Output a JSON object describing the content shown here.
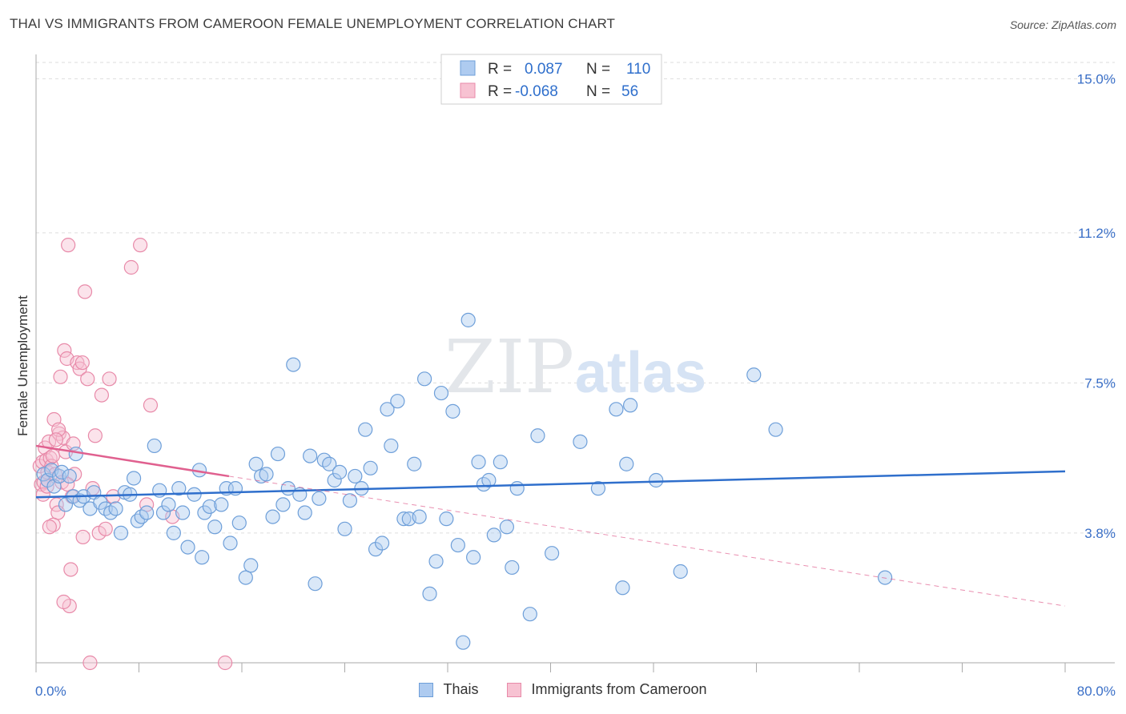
{
  "header": {
    "title": "THAI VS IMMIGRANTS FROM CAMEROON FEMALE UNEMPLOYMENT CORRELATION CHART",
    "source": "Source: ZipAtlas.com"
  },
  "watermark": {
    "zip": "ZIP",
    "atlas": "atlas"
  },
  "legend": {
    "rows": [
      {
        "r_label": "R =",
        "r_value": "0.087",
        "n_label": "N =",
        "n_value": "110"
      },
      {
        "r_label": "R =",
        "r_value": "-0.068",
        "n_label": "N =",
        "n_value": "56"
      }
    ]
  },
  "bottom_legend": {
    "series1": "Thais",
    "series2": "Immigrants from Cameroon"
  },
  "colors": {
    "blue": "#6e9fd9",
    "blue_fill": "#aecbf0",
    "blue_line": "#2f6fcc",
    "pink": "#e88aa9",
    "pink_fill": "#f7c2d2",
    "pink_line": "#e0608f",
    "tick_label": "#3a6fc7"
  },
  "chart_data": {
    "type": "scatter",
    "title": "THAI VS IMMIGRANTS FROM CAMEROON FEMALE UNEMPLOYMENT CORRELATION CHART",
    "xlabel": "",
    "ylabel": "Female Unemployment",
    "xlim": [
      0,
      80
    ],
    "ylim": [
      0.6,
      15.6
    ],
    "x_tick_labels": [
      "0.0%",
      "80.0%"
    ],
    "y_ticks": [
      {
        "value": 15.0,
        "label": "15.0%"
      },
      {
        "value": 11.2,
        "label": "11.2%"
      },
      {
        "value": 7.5,
        "label": "7.5%"
      },
      {
        "value": 3.8,
        "label": "3.8%"
      }
    ],
    "series": [
      {
        "name": "Thais",
        "r": 0.087,
        "n": 110,
        "trend": {
          "x": [
            0,
            80
          ],
          "y": [
            4.68,
            5.32
          ]
        },
        "points": [
          [
            0.6,
            5.25
          ],
          [
            0.9,
            5.1
          ],
          [
            1.2,
            5.35
          ],
          [
            1.4,
            4.95
          ],
          [
            1.8,
            5.2
          ],
          [
            2.0,
            5.3
          ],
          [
            2.3,
            4.5
          ],
          [
            2.6,
            5.2
          ],
          [
            2.9,
            4.7
          ],
          [
            3.1,
            5.75
          ],
          [
            3.4,
            4.6
          ],
          [
            3.7,
            4.7
          ],
          [
            4.2,
            4.4
          ],
          [
            4.5,
            4.8
          ],
          [
            5.0,
            4.55
          ],
          [
            5.4,
            4.4
          ],
          [
            5.8,
            4.3
          ],
          [
            6.2,
            4.4
          ],
          [
            6.6,
            3.8
          ],
          [
            6.9,
            4.8
          ],
          [
            7.3,
            4.75
          ],
          [
            7.6,
            5.15
          ],
          [
            7.9,
            4.1
          ],
          [
            8.2,
            4.2
          ],
          [
            8.6,
            4.3
          ],
          [
            9.2,
            5.95
          ],
          [
            9.6,
            4.85
          ],
          [
            9.9,
            4.3
          ],
          [
            10.3,
            4.5
          ],
          [
            10.7,
            3.8
          ],
          [
            11.1,
            4.9
          ],
          [
            11.4,
            4.3
          ],
          [
            11.8,
            3.45
          ],
          [
            12.3,
            4.75
          ],
          [
            12.7,
            5.35
          ],
          [
            13.1,
            4.3
          ],
          [
            13.5,
            4.45
          ],
          [
            13.9,
            3.95
          ],
          [
            14.4,
            4.5
          ],
          [
            14.8,
            4.9
          ],
          [
            15.1,
            3.55
          ],
          [
            15.5,
            4.9
          ],
          [
            15.8,
            4.05
          ],
          [
            16.3,
            2.7
          ],
          [
            16.7,
            3.0
          ],
          [
            17.1,
            5.5
          ],
          [
            17.5,
            5.2
          ],
          [
            17.9,
            5.25
          ],
          [
            18.4,
            4.2
          ],
          [
            18.8,
            5.75
          ],
          [
            19.2,
            4.5
          ],
          [
            19.6,
            4.9
          ],
          [
            20.0,
            7.95
          ],
          [
            20.5,
            4.75
          ],
          [
            20.9,
            4.3
          ],
          [
            21.3,
            5.7
          ],
          [
            21.7,
            2.55
          ],
          [
            22.0,
            4.65
          ],
          [
            22.4,
            5.6
          ],
          [
            22.8,
            5.5
          ],
          [
            23.2,
            5.1
          ],
          [
            23.6,
            5.3
          ],
          [
            24.0,
            3.9
          ],
          [
            24.4,
            4.6
          ],
          [
            24.8,
            5.2
          ],
          [
            25.3,
            4.9
          ],
          [
            25.6,
            6.35
          ],
          [
            26.0,
            5.4
          ],
          [
            26.4,
            3.4
          ],
          [
            26.9,
            3.55
          ],
          [
            27.3,
            6.85
          ],
          [
            27.6,
            5.95
          ],
          [
            28.1,
            7.05
          ],
          [
            28.6,
            4.15
          ],
          [
            29.0,
            4.15
          ],
          [
            29.4,
            5.5
          ],
          [
            29.8,
            4.2
          ],
          [
            30.2,
            7.6
          ],
          [
            30.6,
            2.3
          ],
          [
            31.1,
            3.1
          ],
          [
            31.5,
            7.25
          ],
          [
            31.9,
            4.15
          ],
          [
            32.4,
            6.8
          ],
          [
            32.8,
            3.5
          ],
          [
            33.2,
            1.1
          ],
          [
            33.6,
            9.05
          ],
          [
            34.0,
            3.2
          ],
          [
            34.4,
            5.55
          ],
          [
            34.8,
            5.0
          ],
          [
            35.2,
            5.1
          ],
          [
            35.6,
            3.75
          ],
          [
            36.1,
            5.55
          ],
          [
            36.6,
            3.95
          ],
          [
            37.0,
            2.95
          ],
          [
            37.4,
            4.9
          ],
          [
            38.4,
            1.8
          ],
          [
            39.0,
            6.2
          ],
          [
            40.1,
            3.3
          ],
          [
            42.3,
            6.05
          ],
          [
            43.7,
            4.9
          ],
          [
            45.1,
            6.85
          ],
          [
            45.9,
            5.5
          ],
          [
            45.6,
            2.45
          ],
          [
            46.2,
            6.95
          ],
          [
            48.2,
            5.1
          ],
          [
            50.1,
            2.85
          ],
          [
            57.5,
            6.35
          ],
          [
            55.8,
            7.7
          ],
          [
            66.0,
            2.7
          ],
          [
            12.9,
            3.2
          ]
        ]
      },
      {
        "name": "Immigrants from Cameroon",
        "r": -0.068,
        "n": 56,
        "trend": {
          "x": [
            0,
            15
          ],
          "y": [
            5.95,
            5.2
          ]
        },
        "trend_ext": {
          "x": [
            15,
            80
          ],
          "y": [
            5.2,
            2.0
          ]
        },
        "points": [
          [
            0.3,
            5.45
          ],
          [
            0.4,
            5.0
          ],
          [
            0.5,
            5.55
          ],
          [
            0.6,
            5.05
          ],
          [
            0.7,
            5.9
          ],
          [
            0.8,
            5.6
          ],
          [
            0.9,
            5.3
          ],
          [
            1.0,
            6.05
          ],
          [
            1.1,
            5.65
          ],
          [
            1.2,
            5.45
          ],
          [
            1.3,
            5.7
          ],
          [
            1.4,
            6.6
          ],
          [
            1.5,
            5.25
          ],
          [
            1.6,
            4.5
          ],
          [
            1.7,
            4.3
          ],
          [
            1.8,
            6.25
          ],
          [
            1.9,
            7.65
          ],
          [
            2.0,
            5.05
          ],
          [
            2.1,
            6.15
          ],
          [
            2.2,
            8.3
          ],
          [
            2.3,
            5.8
          ],
          [
            2.4,
            8.1
          ],
          [
            2.5,
            10.9
          ],
          [
            2.6,
            2.0
          ],
          [
            2.7,
            2.9
          ],
          [
            2.8,
            4.7
          ],
          [
            3.0,
            5.25
          ],
          [
            3.2,
            8.0
          ],
          [
            3.4,
            7.85
          ],
          [
            3.6,
            8.0
          ],
          [
            3.8,
            9.75
          ],
          [
            4.0,
            7.6
          ],
          [
            4.2,
            0.6
          ],
          [
            4.4,
            4.9
          ],
          [
            4.6,
            6.2
          ],
          [
            4.9,
            3.8
          ],
          [
            5.1,
            7.2
          ],
          [
            5.4,
            3.9
          ],
          [
            5.7,
            7.6
          ],
          [
            6.0,
            4.7
          ],
          [
            7.4,
            10.35
          ],
          [
            8.1,
            10.9
          ],
          [
            8.6,
            4.5
          ],
          [
            8.9,
            6.95
          ],
          [
            10.6,
            4.2
          ],
          [
            14.7,
            0.6
          ],
          [
            1.35,
            4.0
          ],
          [
            1.75,
            6.35
          ],
          [
            2.15,
            2.1
          ],
          [
            2.45,
            5.0
          ],
          [
            0.55,
            4.75
          ],
          [
            0.85,
            4.95
          ],
          [
            1.05,
            3.95
          ],
          [
            1.55,
            6.1
          ],
          [
            3.65,
            3.7
          ],
          [
            2.9,
            6.0
          ]
        ]
      }
    ]
  }
}
